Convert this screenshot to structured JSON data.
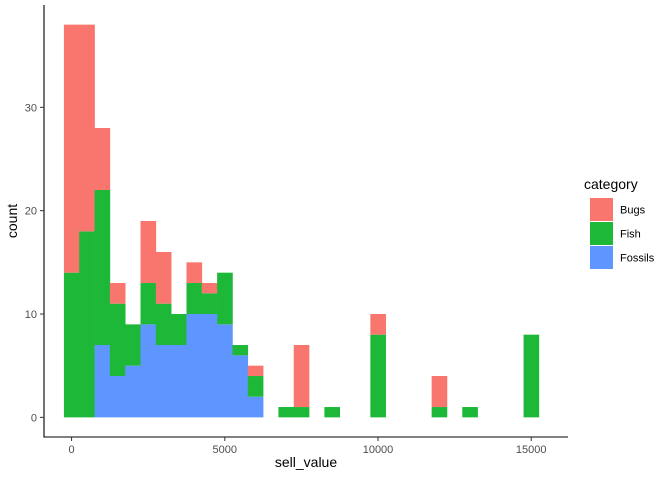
{
  "chart_data": {
    "type": "bar",
    "subtype": "stacked-histogram",
    "xlabel": "sell_value",
    "ylabel": "count",
    "x_ticks": [
      0,
      5000,
      10000,
      15000
    ],
    "x_tick_labels": [
      "0",
      "5000",
      "10000",
      "15000"
    ],
    "y_ticks": [
      0,
      10,
      20,
      30
    ],
    "y_tick_labels": [
      "0",
      "10",
      "20",
      "30"
    ],
    "xlim": [
      -900,
      16200
    ],
    "ylim": [
      -1.9,
      39.9
    ],
    "bin_width": 500,
    "grid": false,
    "legend": {
      "title": "category",
      "position": "right"
    },
    "colors": {
      "Bugs": "#F8766D",
      "Fish": "#1EB839",
      "Fossils": "#5F95FF"
    },
    "bin_centers": [
      0,
      500,
      1000,
      1500,
      2000,
      2500,
      3000,
      3500,
      4000,
      4500,
      5000,
      5500,
      6000,
      6500,
      7000,
      7500,
      8000,
      8500,
      9000,
      9500,
      10000,
      10500,
      11000,
      11500,
      12000,
      12500,
      13000,
      13500,
      14000,
      14500,
      15000
    ],
    "series": [
      {
        "name": "Fossils",
        "values": [
          0,
          0,
          7,
          4,
          5,
          9,
          7,
          7,
          10,
          10,
          9,
          6,
          2,
          0,
          0,
          0,
          0,
          0,
          0,
          0,
          0,
          0,
          0,
          0,
          0,
          0,
          0,
          0,
          0,
          0,
          0
        ]
      },
      {
        "name": "Fish",
        "values": [
          14,
          18,
          15,
          7,
          4,
          4,
          4,
          3,
          3,
          2,
          5,
          1,
          2,
          0,
          1,
          1,
          0,
          1,
          0,
          0,
          8,
          0,
          0,
          0,
          1,
          0,
          1,
          0,
          0,
          0,
          8
        ]
      },
      {
        "name": "Bugs",
        "values": [
          24,
          20,
          6,
          2,
          0,
          6,
          5,
          0,
          2,
          1,
          0,
          0,
          1,
          0,
          0,
          6,
          0,
          0,
          0,
          0,
          2,
          0,
          0,
          0,
          3,
          0,
          0,
          0,
          0,
          0,
          0
        ]
      }
    ]
  }
}
